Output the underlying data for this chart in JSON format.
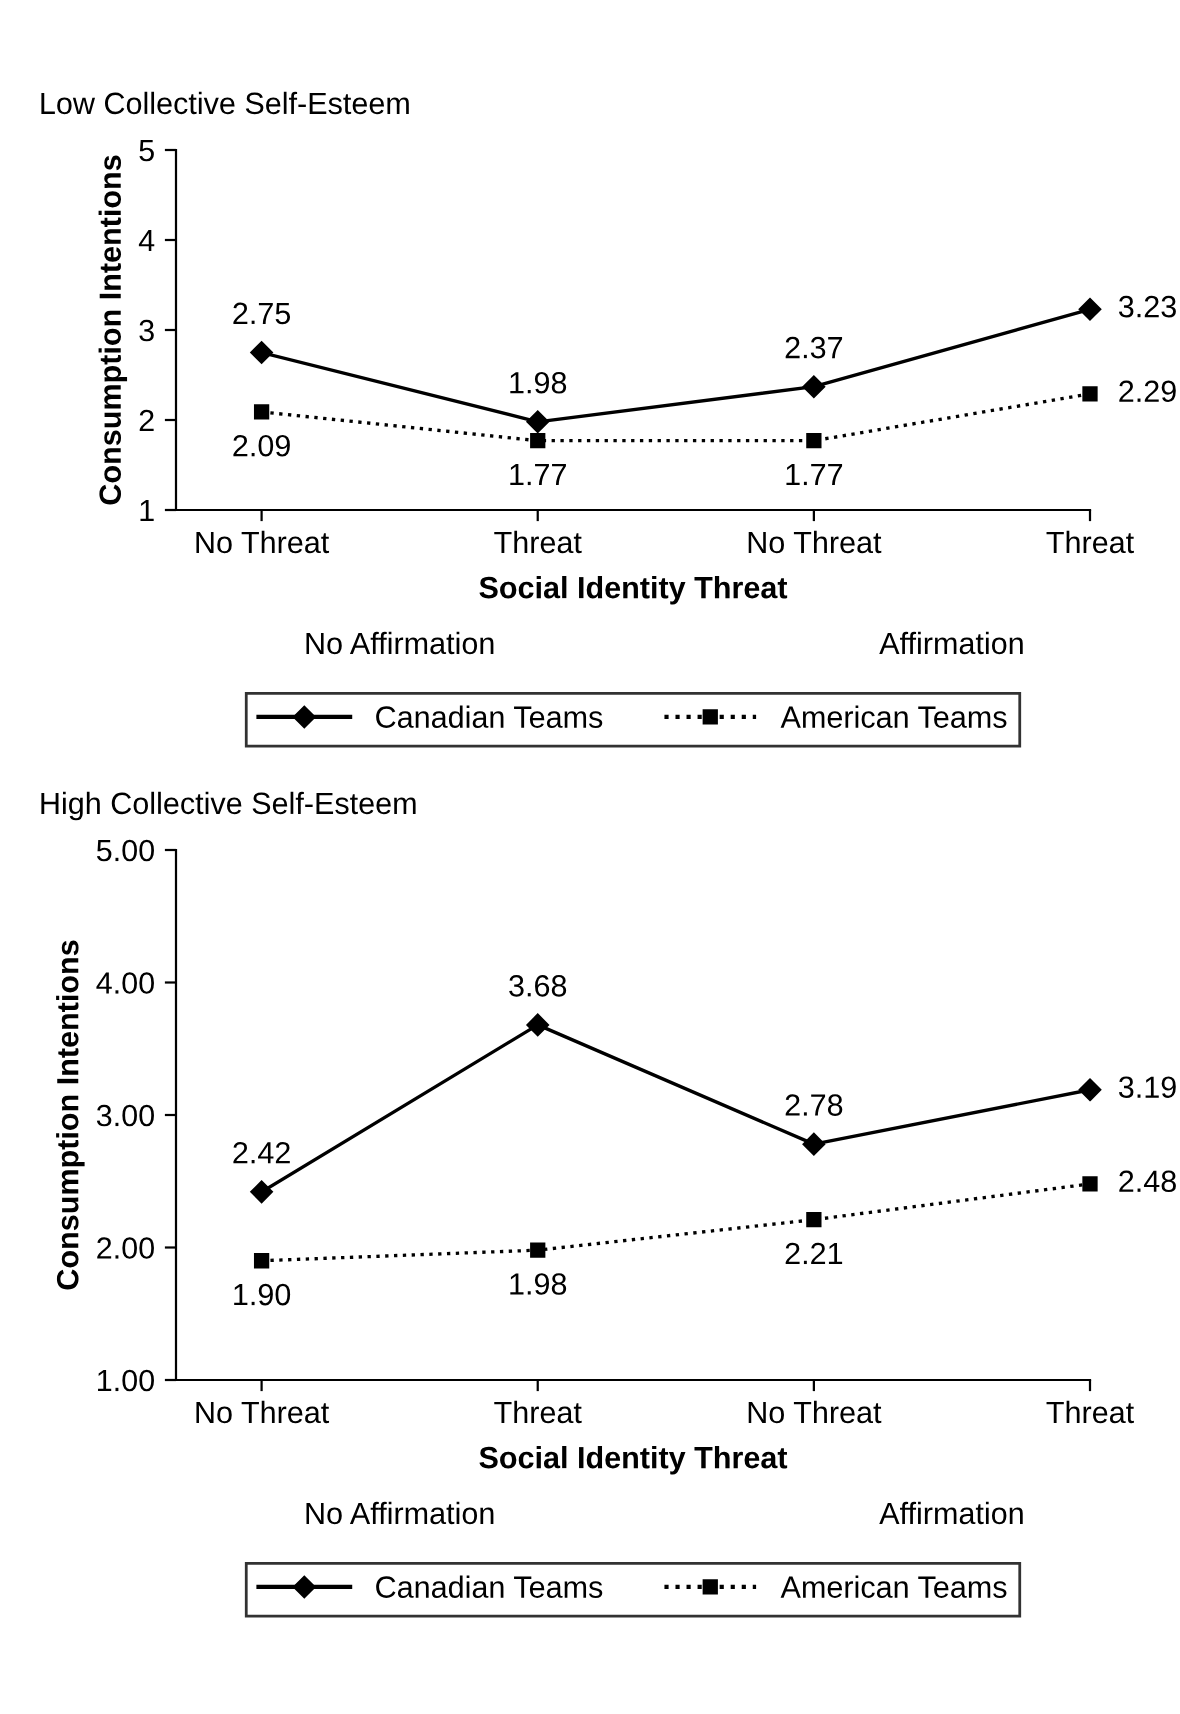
{
  "chart_data": [
    {
      "type": "line",
      "title": "Low Collective Self-Esteem",
      "categories": [
        "No Threat",
        "Threat",
        "No Threat",
        "Threat"
      ],
      "xlabel": "Social Identity Threat",
      "ylabel": "Consumption Intentions",
      "ylim": [
        1,
        5
      ],
      "yticks": [
        1,
        2,
        3,
        4,
        5
      ],
      "annotations": [
        "No Affirmation",
        "Affirmation"
      ],
      "legend": "bottom",
      "grid": false,
      "data_labels": true,
      "series": [
        {
          "name": "Canadian Teams",
          "color": "#000000",
          "marker": "diamond",
          "line_style": "solid",
          "values": [
            2.75,
            1.98,
            2.37,
            3.23
          ]
        },
        {
          "name": "American Teams",
          "color": "#000000",
          "marker": "square",
          "line_style": "dotted",
          "values": [
            2.09,
            1.77,
            1.77,
            2.29
          ]
        }
      ]
    },
    {
      "type": "line",
      "title": "High Collective Self-Esteem",
      "categories": [
        "No Threat",
        "Threat",
        "No Threat",
        "Threat"
      ],
      "xlabel": "Social Identity Threat",
      "ylabel": "Consumption Intentions",
      "ylim": [
        1,
        5
      ],
      "yticks": [
        {
          "value": 1,
          "label": "1.00"
        },
        {
          "value": 2,
          "label": "2.00"
        },
        {
          "value": 3,
          "label": "3.00"
        },
        {
          "value": 4,
          "label": "4.00"
        },
        {
          "value": 5,
          "label": "5.00"
        }
      ],
      "annotations": [
        "No Affirmation",
        "Affirmation"
      ],
      "legend": "bottom",
      "grid": false,
      "series": [
        {
          "name": "Canadian Teams",
          "color": "#000000",
          "marker": "diamond",
          "line_style": "solid",
          "values": [
            2.42,
            3.68,
            2.78,
            3.19
          ],
          "value_labels": [
            "2.42",
            "3.68",
            "2.78",
            "3.19"
          ]
        },
        {
          "name": "American Teams",
          "color": "#000000",
          "marker": "square",
          "line_style": "dotted",
          "values": [
            1.9,
            1.98,
            2.21,
            2.48
          ],
          "value_labels": [
            "1.90",
            "1.98",
            "2.21",
            "2.48"
          ]
        }
      ]
    }
  ]
}
